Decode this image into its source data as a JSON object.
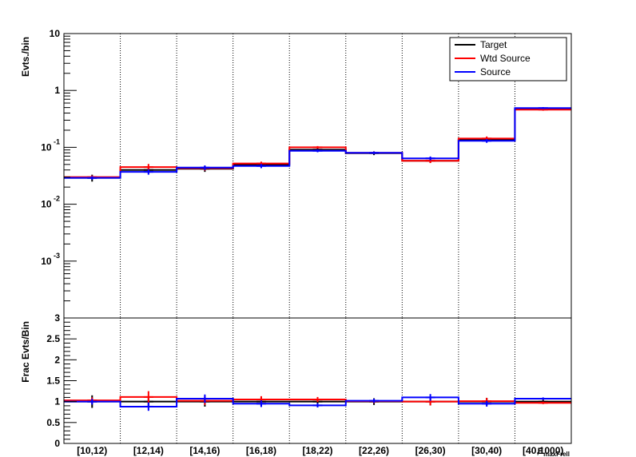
{
  "chart_data": [
    {
      "type": "step",
      "panel": "top",
      "ylabel": "Evts./bin",
      "yscale": "log",
      "ylim": [
        0.0001,
        10
      ],
      "ytick_labels": [
        {
          "base": "10",
          "exp": "",
          "value": 10
        },
        {
          "base": "1",
          "exp": "",
          "value": 1
        },
        {
          "base": "10",
          "exp": "-1",
          "value": 0.1
        },
        {
          "base": "10",
          "exp": "-2",
          "value": 0.01
        },
        {
          "base": "10",
          "exp": "-3",
          "value": 0.001
        }
      ],
      "categories": [
        "[10,12)",
        "[12,14)",
        "[14,16)",
        "[16,18)",
        "[18,22)",
        "[22,26)",
        "[26,30)",
        "[30,40)",
        "[40,1000)"
      ],
      "xlabel": "E_{maxFrell}",
      "legend": {
        "placement": "top-right",
        "entries": [
          "Target",
          "Wtd Source",
          "Source"
        ]
      },
      "grid": {
        "x": true,
        "y": false
      },
      "series": [
        {
          "name": "Target",
          "color": "#000000",
          "values": [
            0.029,
            0.04,
            0.042,
            0.049,
            0.091,
            0.079,
            0.058,
            0.137,
            0.48
          ],
          "errors": [
            0.004,
            0.005,
            0.005,
            0.005,
            0.006,
            0.006,
            0.005,
            0.012,
            0.02
          ]
        },
        {
          "name": "Wtd Source",
          "color": "#ff0000",
          "values": [
            0.03,
            0.045,
            0.043,
            0.052,
            0.1,
            0.08,
            0.058,
            0.143,
            0.46
          ],
          "errors": [
            0.002,
            0.006,
            0.004,
            0.004,
            0.005,
            0.004,
            0.005,
            0.012,
            0.02
          ]
        },
        {
          "name": "Source",
          "color": "#0000ff",
          "values": [
            0.029,
            0.037,
            0.044,
            0.047,
            0.087,
            0.08,
            0.064,
            0.13,
            0.49
          ],
          "errors": [
            0.002,
            0.004,
            0.004,
            0.004,
            0.005,
            0.004,
            0.005,
            0.01,
            0.02
          ]
        }
      ]
    },
    {
      "type": "step",
      "panel": "bottom",
      "ylabel": "Frac Evts/Bin",
      "ylim": [
        0,
        3
      ],
      "ytick_labels": [
        "0",
        "0.5",
        "1",
        "1.5",
        "2",
        "2.5",
        "3"
      ],
      "ytick_values": [
        0,
        0.5,
        1,
        1.5,
        2,
        2.5,
        3
      ],
      "categories": [
        "[10,12)",
        "[12,14)",
        "[14,16)",
        "[16,18)",
        "[18,22)",
        "[22,26)",
        "[26,30)",
        "[30,40)",
        "[40,1000)"
      ],
      "grid": {
        "x": true,
        "y": false
      },
      "series": [
        {
          "name": "Target",
          "color": "#000000",
          "values": [
            1.0,
            1.0,
            1.0,
            1.0,
            1.0,
            1.0,
            1.0,
            1.0,
            1.0
          ],
          "errors": [
            0.15,
            0.13,
            0.12,
            0.11,
            0.07,
            0.08,
            0.09,
            0.09,
            0.04
          ]
        },
        {
          "name": "Wtd Source",
          "color": "#ff0000",
          "values": [
            1.03,
            1.11,
            1.02,
            1.05,
            1.05,
            1.01,
            1.0,
            1.01,
            0.97
          ],
          "errors": [
            0.07,
            0.14,
            0.1,
            0.08,
            0.06,
            0.05,
            0.09,
            0.08,
            0.03
          ]
        },
        {
          "name": "Source",
          "color": "#0000ff",
          "values": [
            1.0,
            0.88,
            1.07,
            0.95,
            0.91,
            1.02,
            1.1,
            0.95,
            1.07
          ],
          "errors": [
            0.07,
            0.1,
            0.1,
            0.08,
            0.05,
            0.05,
            0.08,
            0.07,
            0.03
          ]
        }
      ]
    }
  ]
}
